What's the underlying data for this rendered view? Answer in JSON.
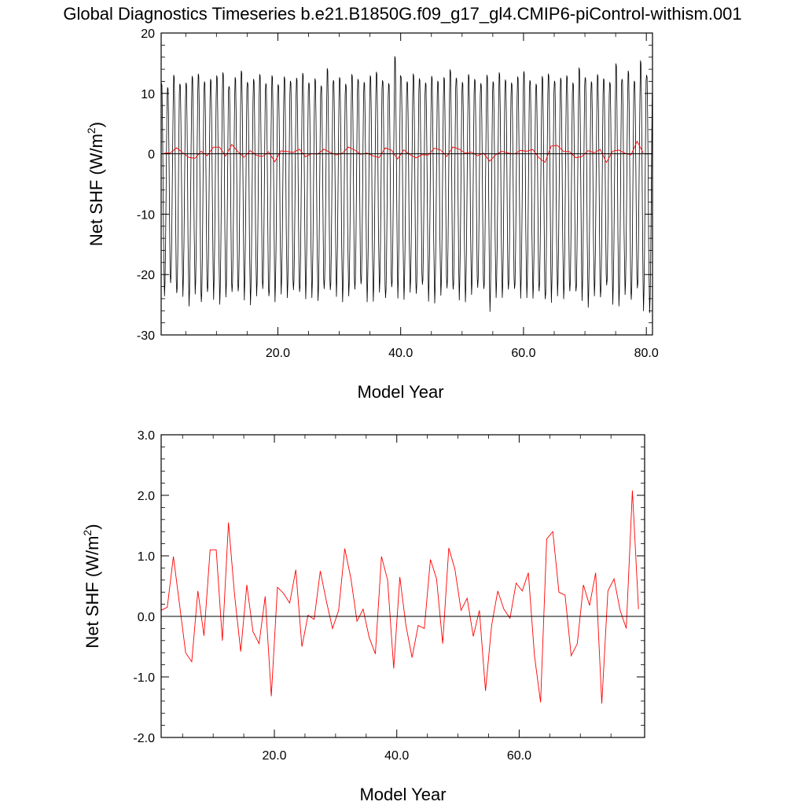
{
  "title": "Global Diagnostics Timeseries b.e21.B1850G.f09_g17_gl4.CMIP6-piControl-withism.001",
  "colors": {
    "monthly": "#000000",
    "annual": "#ff0000",
    "zero_line": "#000000",
    "frame": "#000000"
  },
  "chart_data": [
    {
      "type": "line",
      "xlabel": "Model Year",
      "ylabel": "Net SHF (W/m²)",
      "ylabel_parts": {
        "base": "Net SHF (W/m",
        "sup": "2",
        "end": ")"
      },
      "xlim": [
        1,
        81
      ],
      "ylim": [
        -30,
        20
      ],
      "xticks": [
        20,
        40,
        60,
        80
      ],
      "xtick_labels": [
        "20.0",
        "40.0",
        "60.0",
        "80.0"
      ],
      "yticks": [
        -30,
        -20,
        -10,
        0,
        10,
        20
      ],
      "ytick_labels": [
        "-30",
        "-20",
        "-10",
        "0",
        "10",
        "20"
      ],
      "reference_line": 0,
      "series": [
        {
          "kind": "monthly-seasonal",
          "color": "#000000",
          "x_start": 1.0417,
          "x_step": 0.08333,
          "months": 960,
          "annual_min": [
            -22.6,
            -21.0,
            -23.3,
            -21.5,
            -23.7,
            -22.3,
            -24.2,
            -23.1,
            -22.0,
            -23.4,
            -22.8,
            -22.5,
            -23.0,
            -22.1,
            -23.5,
            -22.6,
            -22.0,
            -23.8,
            -22.4,
            -21.7,
            -22.9,
            -22.2,
            -23.1,
            -21.9,
            -22.3,
            -23.4,
            -22.0,
            -22.8,
            -21.5,
            -23.0,
            -22.6,
            -22.1,
            -21.8,
            -22.4,
            -22.9,
            -22.0,
            -23.5,
            -22.3,
            -21.8,
            -22.6,
            -22.0,
            -22.8,
            -21.9,
            -22.3,
            -23.2,
            -22.5,
            -21.9,
            -22.7,
            -22.1,
            -23.0,
            -22.4,
            -21.8,
            -22.6,
            -24.0,
            -22.3,
            -22.9,
            -22.1,
            -22.6,
            -21.8,
            -22.3,
            -23.0,
            -22.4,
            -24.3,
            -22.5,
            -22.0,
            -23.1,
            -22.4,
            -23.0,
            -22.2,
            -23.9,
            -22.6,
            -23.4,
            -22.0,
            -22.8,
            -23.7,
            -22.4,
            -23.8,
            -22.5,
            -23.9,
            -24.8
          ],
          "annual_max": [
            12.5,
            11.8,
            13.9,
            12.4,
            12.6,
            13.7,
            14.1,
            12.8,
            13.2,
            13.8,
            14.3,
            12.0,
            13.5,
            14.6,
            12.7,
            13.2,
            14.0,
            12.5,
            13.8,
            12.3,
            13.6,
            12.9,
            13.4,
            14.2,
            12.6,
            13.3,
            12.1,
            15.0,
            13.0,
            13.5,
            12.4,
            14.0,
            13.2,
            12.7,
            13.8,
            14.4,
            13.0,
            12.5,
            17.0,
            13.6,
            12.8,
            14.1,
            13.3,
            12.6,
            13.7,
            12.9,
            13.5,
            14.8,
            13.4,
            12.7,
            14.0,
            13.2,
            12.5,
            13.9,
            12.8,
            14.3,
            13.1,
            12.6,
            13.6,
            14.5,
            13.0,
            12.4,
            13.7,
            14.1,
            12.9,
            13.4,
            13.8,
            12.6,
            15.1,
            13.5,
            12.8,
            14.0,
            13.3,
            12.7,
            15.8,
            13.2,
            14.6,
            12.9,
            16.3,
            13.9
          ]
        },
        {
          "kind": "annual-mean",
          "color": "#ff0000",
          "x_start": 1.5,
          "values": [
            0.1,
            0.15,
            0.99,
            0.2,
            -0.6,
            -0.75,
            0.42,
            -0.32,
            1.1,
            1.1,
            -0.4,
            1.55,
            0.35,
            -0.58,
            0.52,
            -0.25,
            -0.45,
            0.33,
            -1.32,
            0.48,
            0.38,
            0.22,
            0.77,
            -0.5,
            0.02,
            -0.05,
            0.75,
            0.25,
            -0.2,
            0.1,
            1.12,
            0.63,
            -0.08,
            0.12,
            -0.35,
            -0.62,
            0.99,
            0.6,
            -0.86,
            0.65,
            -0.15,
            -0.68,
            -0.15,
            -0.2,
            0.94,
            0.62,
            -0.45,
            1.13,
            0.78,
            0.1,
            0.3,
            -0.33,
            0.1,
            -1.23,
            -0.15,
            0.42,
            0.12,
            -0.03,
            0.55,
            0.42,
            0.72,
            -0.65,
            -1.42,
            1.28,
            1.4,
            0.4,
            0.35,
            -0.65,
            -0.45,
            0.52,
            0.18,
            0.72,
            -1.44,
            0.42,
            0.62,
            0.1,
            -0.2,
            2.08,
            0.12
          ]
        }
      ]
    },
    {
      "type": "line",
      "xlabel": "Model Year",
      "ylabel": "Net SHF (W/m²)",
      "ylabel_parts": {
        "base": "Net SHF (W/m",
        "sup": "2",
        "end": ")"
      },
      "xlim": [
        1.5,
        80.5
      ],
      "ylim": [
        -2,
        3
      ],
      "xticks": [
        20,
        40,
        60
      ],
      "xtick_labels": [
        "20.0",
        "40.0",
        "60.0"
      ],
      "yticks": [
        -2,
        -1,
        0,
        1,
        2,
        3
      ],
      "ytick_labels": [
        "-2.0",
        "-1.0",
        "0.0",
        "1.0",
        "2.0",
        "3.0"
      ],
      "reference_line": 0,
      "series": [
        {
          "kind": "annual-mean",
          "color": "#ff0000",
          "x_start": 1.5,
          "values": [
            0.1,
            0.15,
            0.99,
            0.2,
            -0.6,
            -0.75,
            0.42,
            -0.32,
            1.1,
            1.1,
            -0.4,
            1.55,
            0.35,
            -0.58,
            0.52,
            -0.25,
            -0.45,
            0.33,
            -1.32,
            0.48,
            0.38,
            0.22,
            0.77,
            -0.5,
            0.02,
            -0.05,
            0.75,
            0.25,
            -0.2,
            0.1,
            1.12,
            0.63,
            -0.08,
            0.12,
            -0.35,
            -0.62,
            0.99,
            0.6,
            -0.86,
            0.65,
            -0.15,
            -0.68,
            -0.15,
            -0.2,
            0.94,
            0.62,
            -0.45,
            1.13,
            0.78,
            0.1,
            0.3,
            -0.33,
            0.1,
            -1.23,
            -0.15,
            0.42,
            0.12,
            -0.03,
            0.55,
            0.42,
            0.72,
            -0.65,
            -1.42,
            1.28,
            1.4,
            0.4,
            0.35,
            -0.65,
            -0.45,
            0.52,
            0.18,
            0.72,
            -1.44,
            0.42,
            0.62,
            0.1,
            -0.2,
            2.08,
            0.12
          ]
        }
      ]
    }
  ]
}
